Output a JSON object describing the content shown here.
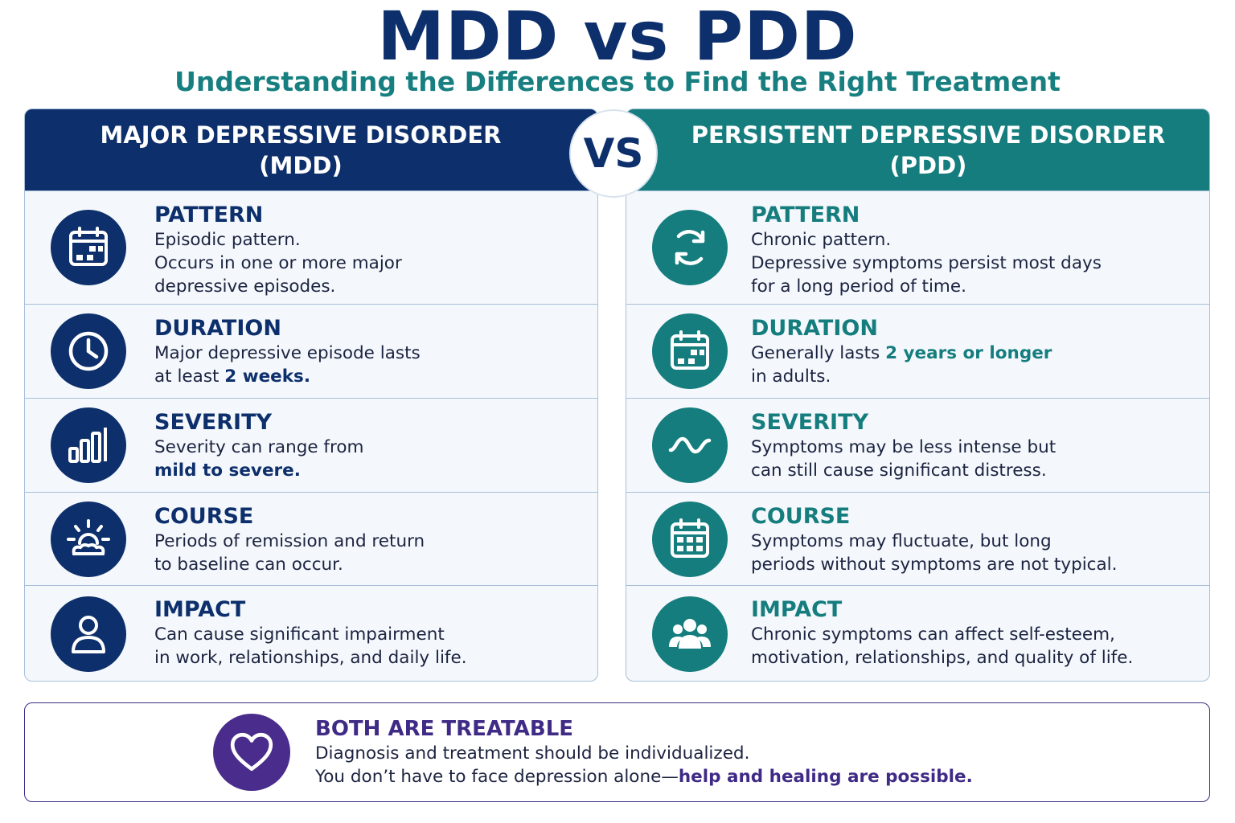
{
  "title": "MDD vs PDD",
  "subtitle": "Understanding the Differences to Find the Right Treatment",
  "vs_label": "VS",
  "colors": {
    "navy": "#0d2f6b",
    "teal": "#157d7e",
    "purple": "#3f2a86"
  },
  "mdd": {
    "header_line1": "MAJOR DEPRESSIVE DISORDER",
    "header_line2": "(MDD)",
    "rows": [
      {
        "icon": "calendar-icon",
        "title": "PATTERN",
        "line1": "Episodic pattern.",
        "line2": "Occurs in one or more major",
        "line3": "depressive episodes."
      },
      {
        "icon": "clock-icon",
        "title": "DURATION",
        "line1": "Major depressive episode lasts",
        "line2_pre": "at least ",
        "line2_emph": "2 weeks."
      },
      {
        "icon": "bar-chart-icon",
        "title": "SEVERITY",
        "line1": "Severity can range from",
        "line2_emph": "mild to severe."
      },
      {
        "icon": "sunrise-icon",
        "title": "COURSE",
        "line1": "Periods of remission and return",
        "line2": "to baseline can occur."
      },
      {
        "icon": "person-icon",
        "title": "IMPACT",
        "line1": "Can cause significant impairment",
        "line2": "in work, relationships, and daily life."
      }
    ]
  },
  "pdd": {
    "header_line1": "PERSISTENT DEPRESSIVE DISORDER",
    "header_line2": "(PDD)",
    "rows": [
      {
        "icon": "cycle-arrows-icon",
        "title": "PATTERN",
        "line1": "Chronic pattern.",
        "line2": "Depressive symptoms persist most days",
        "line3": "for a long period of time."
      },
      {
        "icon": "calendar-icon",
        "title": "DURATION",
        "line1_pre": "Generally lasts ",
        "line1_emph": "2 years or longer",
        "line2": "in adults."
      },
      {
        "icon": "wave-icon",
        "title": "SEVERITY",
        "line1": "Symptoms may be less intense but",
        "line2": "can still cause significant distress."
      },
      {
        "icon": "grid-calendar-icon",
        "title": "COURSE",
        "line1": "Symptoms may fluctuate, but long",
        "line2": "periods without symptoms are not typical."
      },
      {
        "icon": "group-icon",
        "title": "IMPACT",
        "line1": "Chronic symptoms can affect self-esteem,",
        "line2": "motivation, relationships, and quality of life."
      }
    ]
  },
  "footer": {
    "icon": "heart-icon",
    "title": "BOTH ARE TREATABLE",
    "line1": "Diagnosis and treatment should be individualized.",
    "line2_pre": "You don’t have to face depression alone—",
    "line2_emph": "help and healing are possible."
  }
}
